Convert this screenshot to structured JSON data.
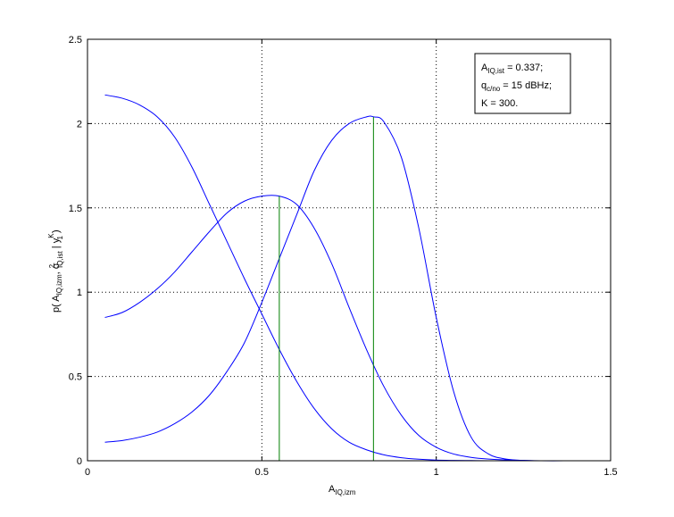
{
  "chart_data": {
    "type": "line",
    "xlabel": {
      "main": "A",
      "sub": "IQ,izm"
    },
    "ylabel": {
      "p": "p( A",
      "sub1": "IQ,izm",
      "sep": ", σ",
      "sup2": "2",
      "sub2": "IQ,ist",
      "bar": " | y",
      "supK": "K",
      "sub3": "1",
      "close": " )"
    },
    "xlim": [
      0,
      1.5
    ],
    "ylim": [
      0,
      2.5
    ],
    "xticks": [
      "0",
      "0.5",
      "1",
      "1.5"
    ],
    "yticks": [
      "0",
      "0.5",
      "1",
      "1.5",
      "2",
      "2.5"
    ],
    "grid": true,
    "line_color": "#0000ff",
    "marker_color": "#008000",
    "series": [
      {
        "x": [
          0.05,
          0.1,
          0.15,
          0.2,
          0.25,
          0.3,
          0.35,
          0.4,
          0.45,
          0.5,
          0.55,
          0.6,
          0.65,
          0.7,
          0.75,
          0.8,
          0.85,
          0.9,
          0.95,
          1.0,
          1.05,
          1.1,
          1.15,
          1.2,
          1.3,
          1.4,
          1.5
        ],
        "y": [
          2.17,
          2.15,
          2.11,
          2.04,
          1.92,
          1.74,
          1.52,
          1.3,
          1.08,
          0.87,
          0.66,
          0.47,
          0.31,
          0.19,
          0.11,
          0.065,
          0.035,
          0.018,
          0.009,
          0.004,
          0.002,
          0.001,
          0.0,
          0.0,
          0.0,
          0.0,
          0.0
        ]
      },
      {
        "x": [
          0.05,
          0.1,
          0.15,
          0.2,
          0.25,
          0.3,
          0.35,
          0.4,
          0.45,
          0.5,
          0.55,
          0.6,
          0.65,
          0.7,
          0.75,
          0.8,
          0.85,
          0.9,
          0.95,
          1.0,
          1.05,
          1.1,
          1.15,
          1.2,
          1.3,
          1.4,
          1.5
        ],
        "y": [
          0.85,
          0.88,
          0.94,
          1.02,
          1.12,
          1.24,
          1.36,
          1.47,
          1.54,
          1.57,
          1.57,
          1.52,
          1.38,
          1.17,
          0.91,
          0.66,
          0.44,
          0.27,
          0.15,
          0.08,
          0.04,
          0.02,
          0.01,
          0.005,
          0.0,
          0.0,
          0.0
        ]
      },
      {
        "x": [
          0.05,
          0.1,
          0.15,
          0.2,
          0.25,
          0.3,
          0.35,
          0.4,
          0.45,
          0.5,
          0.55,
          0.6,
          0.65,
          0.7,
          0.75,
          0.8,
          0.82,
          0.85,
          0.9,
          0.95,
          1.0,
          1.05,
          1.1,
          1.15,
          1.2,
          1.25,
          1.3,
          1.4,
          1.5
        ],
        "y": [
          0.11,
          0.12,
          0.14,
          0.17,
          0.22,
          0.29,
          0.39,
          0.53,
          0.7,
          0.94,
          1.2,
          1.46,
          1.72,
          1.9,
          2.0,
          2.04,
          2.04,
          2.01,
          1.8,
          1.38,
          0.85,
          0.41,
          0.14,
          0.04,
          0.01,
          0.002,
          0.0,
          0.0,
          0.0
        ]
      }
    ],
    "vlines": [
      {
        "x": 0.55,
        "y": 1.57
      },
      {
        "x": 0.82,
        "y": 2.04
      }
    ],
    "legend": {
      "placement": "top-right",
      "lines": [
        {
          "main": "A",
          "sub": "IQ,ist",
          "rest": " = 0.337;"
        },
        {
          "main": "q",
          "sub": "c/no",
          "rest": " = 15 dBHz;"
        },
        {
          "main": "K = 300.",
          "sub": "",
          "rest": ""
        }
      ]
    }
  }
}
